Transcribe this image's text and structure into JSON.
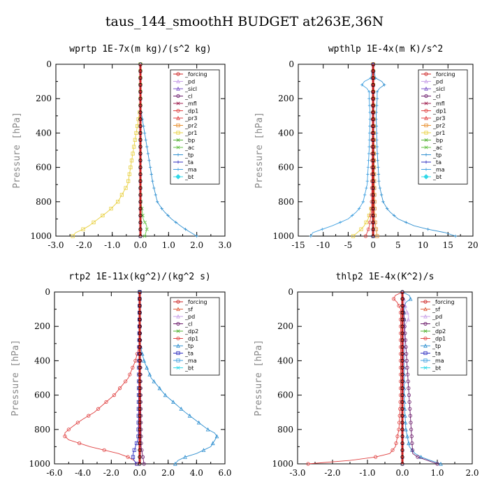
{
  "title": "taus_144_smoothH  BUDGET at263E,36N",
  "colors": {
    "_forcing": "#cc2222",
    "_pd": "#c8a0e8",
    "_sicl": "#7b52c8",
    "_cl": "#6a1a6a",
    "_mfl": "#a02050",
    "_dp1": "#e04040",
    "_pr3": "#e04040",
    "_pr2": "#e89030",
    "_pr1": "#e8d040",
    "_bp": "#50b030",
    "_ac": "#60c040",
    "_tp": "#3090d0",
    "_ta": "#3030c0",
    "_ma": "#40a0e0",
    "_bt": "#30d8e8",
    "_sf": "#e06040",
    "_dp2": "#50b030"
  },
  "chart_data": [
    {
      "type": "line",
      "title": "wprtp  1E-7x(m kg)/(s^2 kg)",
      "ylabel": "Pressure [hPa]",
      "xlim": [
        -3,
        3
      ],
      "ylim": [
        1000,
        0
      ],
      "xticks": [
        "-3.0",
        "-2.0",
        "-1.0",
        "0.0",
        "1.0",
        "2.0",
        "3.0"
      ],
      "xticks_v": [
        -3,
        -2,
        -1,
        0,
        1,
        2,
        3
      ],
      "yticks": [
        "0",
        "200",
        "400",
        "600",
        "800",
        "1000"
      ],
      "yticks_v": [
        0,
        200,
        400,
        600,
        800,
        1000
      ],
      "legend": [
        "_forcing",
        "_pd",
        "_sicl",
        "_cl",
        "_mfl",
        "_dp1",
        "_pr3",
        "_pr2",
        "_pr1",
        "_bp",
        "_ac",
        "_tp",
        "_ta",
        "_ma",
        "_bt"
      ],
      "series": [
        {
          "name": "_pr1",
          "p": [
            0,
            250,
            300,
            400,
            500,
            600,
            700,
            800,
            850,
            900,
            950,
            980,
            1000
          ],
          "v": [
            0,
            0,
            -0.05,
            -0.15,
            -0.25,
            -0.35,
            -0.45,
            -0.8,
            -1.1,
            -1.5,
            -1.9,
            -2.3,
            -2.4
          ]
        },
        {
          "name": "_tp",
          "p": [
            0,
            250,
            300,
            400,
            500,
            600,
            700,
            800,
            850,
            900,
            950,
            980,
            1000
          ],
          "v": [
            0,
            0,
            0.05,
            0.15,
            0.25,
            0.35,
            0.45,
            0.6,
            0.8,
            1.1,
            1.5,
            1.8,
            2.0
          ]
        },
        {
          "name": "_ac",
          "p": [
            0,
            700,
            800,
            900,
            950,
            1000
          ],
          "v": [
            0,
            0,
            0.02,
            0.1,
            0.25,
            0.15
          ]
        },
        {
          "name": "_pd",
          "p": [
            0,
            1000
          ],
          "v": [
            0,
            0
          ]
        },
        {
          "name": "_forcing",
          "p": [
            0,
            100,
            200,
            300,
            400,
            500,
            600,
            700,
            800,
            900,
            1000
          ],
          "v": [
            0,
            0,
            0,
            0,
            0,
            0,
            0,
            0,
            0,
            0,
            0
          ]
        }
      ]
    },
    {
      "type": "line",
      "title": "wpthlp  1E-4x(m K)/s^2",
      "ylabel": "Pressure [hPa]",
      "xlim": [
        -15,
        20
      ],
      "ylim": [
        1000,
        0
      ],
      "xticks": [
        "-15",
        "-10",
        "-5",
        "0",
        "5",
        "10",
        "15",
        "20"
      ],
      "xticks_v": [
        -15,
        -10,
        -5,
        0,
        5,
        10,
        15,
        20
      ],
      "yticks": [
        "0",
        "200",
        "400",
        "600",
        "800",
        "1000"
      ],
      "yticks_v": [
        0,
        200,
        400,
        600,
        800,
        1000
      ],
      "legend": [
        "_forcing",
        "_pd",
        "_sicl",
        "_cl",
        "_mfl",
        "_dp1",
        "_pr3",
        "_pr2",
        "_pr1",
        "_bp",
        "_ac",
        "_tp",
        "_ta",
        "_ma",
        "_bt"
      ],
      "series": [
        {
          "name": "_tp",
          "p": [
            0,
            90,
            110,
            130,
            160,
            200,
            300,
            400,
            500,
            600,
            700,
            800,
            850,
            900,
            950,
            975,
            1000
          ],
          "v": [
            0,
            0.5,
            3,
            1.5,
            0.8,
            0.8,
            0.6,
            0.7,
            0.8,
            1.0,
            1.2,
            2.0,
            3.0,
            5.0,
            9.0,
            14.0,
            16.5
          ]
        },
        {
          "name": "_ma",
          "p": [
            0,
            90,
            110,
            130,
            160,
            200,
            300,
            400,
            500,
            600,
            700,
            800,
            850,
            900,
            950,
            975,
            1000
          ],
          "v": [
            0,
            -0.5,
            -3,
            -1.5,
            -0.8,
            -0.8,
            -0.6,
            -0.7,
            -0.8,
            -1.0,
            -1.2,
            -2.0,
            -3.0,
            -5.0,
            -9.0,
            -12.0,
            -12.5
          ]
        },
        {
          "name": "_pr1",
          "p": [
            0,
            800,
            900,
            950,
            1000
          ],
          "v": [
            0,
            0,
            -1,
            -2,
            -4
          ]
        },
        {
          "name": "_pr2",
          "p": [
            0,
            900,
            1000
          ],
          "v": [
            0,
            0.3,
            0.8
          ]
        },
        {
          "name": "_dp1",
          "p": [
            0,
            850,
            950,
            1000
          ],
          "v": [
            0,
            -0.3,
            -0.8,
            -1.5
          ]
        },
        {
          "name": "_sicl",
          "p": [
            0,
            1000
          ],
          "v": [
            0,
            0
          ]
        },
        {
          "name": "_forcing",
          "p": [
            0,
            100,
            200,
            300,
            400,
            500,
            600,
            700,
            800,
            900,
            1000
          ],
          "v": [
            0,
            0,
            0,
            0,
            0,
            0,
            0,
            0,
            0,
            0,
            0
          ]
        }
      ]
    },
    {
      "type": "line",
      "title": "rtp2  1E-11x(kg^2)/(kg^2 s)",
      "ylabel": "Pressure [hPa]",
      "xlim": [
        -6,
        6
      ],
      "ylim": [
        1000,
        0
      ],
      "xticks": [
        "-6.0",
        "-4.0",
        "-2.0",
        "0.0",
        "2.0",
        "4.0",
        "6.0"
      ],
      "xticks_v": [
        -6,
        -4,
        -2,
        0,
        2,
        4,
        6
      ],
      "yticks": [
        "0",
        "200",
        "400",
        "600",
        "800",
        "1000"
      ],
      "yticks_v": [
        0,
        200,
        400,
        600,
        800,
        1000
      ],
      "legend": [
        "_forcing",
        "_sf",
        "_pd",
        "_cl",
        "_dp2",
        "_dp1",
        "_tp",
        "_ta",
        "_ma",
        "_bt"
      ],
      "series": [
        {
          "name": "_dp1",
          "p": [
            0,
            300,
            400,
            500,
            600,
            700,
            750,
            800,
            830,
            860,
            900,
            940,
            970,
            1000
          ],
          "v": [
            0,
            0,
            -0.3,
            -0.8,
            -1.8,
            -3.2,
            -4.2,
            -5.0,
            -5.4,
            -5.0,
            -3.5,
            -1.5,
            -0.5,
            -0.2
          ]
        },
        {
          "name": "_tp",
          "p": [
            0,
            300,
            400,
            500,
            600,
            700,
            750,
            800,
            830,
            860,
            900,
            940,
            970,
            1000
          ],
          "v": [
            0,
            0,
            0.3,
            0.8,
            1.8,
            3.2,
            4.0,
            4.8,
            5.5,
            5.3,
            5.0,
            4.0,
            2.8,
            2.5
          ]
        },
        {
          "name": "_ta",
          "p": [
            0,
            850,
            900,
            950,
            980,
            1000
          ],
          "v": [
            0,
            -0.1,
            -0.3,
            -0.5,
            -0.4,
            -0.2
          ]
        },
        {
          "name": "_cl",
          "p": [
            0,
            900,
            950,
            1000
          ],
          "v": [
            0,
            0.1,
            0.2,
            0.3
          ]
        },
        {
          "name": "_forcing",
          "p": [
            0,
            100,
            200,
            300,
            400,
            500,
            600,
            700,
            800,
            900,
            1000
          ],
          "v": [
            0,
            0,
            0,
            0,
            0,
            0,
            0,
            0,
            0,
            0,
            0
          ]
        }
      ]
    },
    {
      "type": "line",
      "title": "thlp2  1E-4x(K^2)/s",
      "ylabel": "Pressure [hPa]",
      "xlim": [
        -3,
        2
      ],
      "ylim": [
        1000,
        0
      ],
      "xticks": [
        "-3.0",
        "-2.0",
        "-1.0",
        "0.0",
        "1.0",
        "2.0"
      ],
      "xticks_v": [
        -3,
        -2,
        -1,
        0,
        1,
        2
      ],
      "yticks": [
        "0",
        "200",
        "400",
        "600",
        "800",
        "1000"
      ],
      "yticks_v": [
        0,
        200,
        400,
        600,
        800,
        1000
      ],
      "legend": [
        "_forcing",
        "_sf",
        "_pd",
        "_cl",
        "_dp2",
        "_dp1",
        "_tp",
        "_ta",
        "_ma",
        "_bt"
      ],
      "series": [
        {
          "name": "_tp",
          "p": [
            0,
            30,
            60,
            100,
            150,
            200,
            300,
            400,
            500,
            600,
            700,
            800,
            900,
            950,
            980,
            1000
          ],
          "v": [
            0,
            0.3,
            0.1,
            0.05,
            0.05,
            0.05,
            0.05,
            0.05,
            0.05,
            0.05,
            0.07,
            0.1,
            0.2,
            0.4,
            0.8,
            1.1
          ]
        },
        {
          "name": "_dp1",
          "p": [
            0,
            30,
            60,
            100,
            150,
            200,
            300,
            400,
            500,
            600,
            700,
            800,
            900,
            950,
            980,
            1000
          ],
          "v": [
            0,
            -0.3,
            -0.15,
            -0.05,
            -0.05,
            -0.05,
            -0.05,
            -0.05,
            -0.05,
            -0.05,
            -0.07,
            -0.1,
            -0.2,
            -0.4,
            -1.5,
            -2.7
          ]
        },
        {
          "name": "_pd",
          "p": [
            0,
            100,
            150,
            200,
            1000
          ],
          "v": [
            0,
            0.1,
            0.2,
            0.05,
            0
          ]
        },
        {
          "name": "_cl",
          "p": [
            0,
            950,
            1000
          ],
          "v": [
            0,
            0.3,
            1.0
          ]
        },
        {
          "name": "_forcing",
          "p": [
            0,
            100,
            200,
            300,
            400,
            500,
            600,
            700,
            800,
            900,
            1000
          ],
          "v": [
            0,
            0,
            0,
            0,
            0,
            0,
            0,
            0,
            0,
            0,
            0
          ]
        }
      ]
    }
  ]
}
